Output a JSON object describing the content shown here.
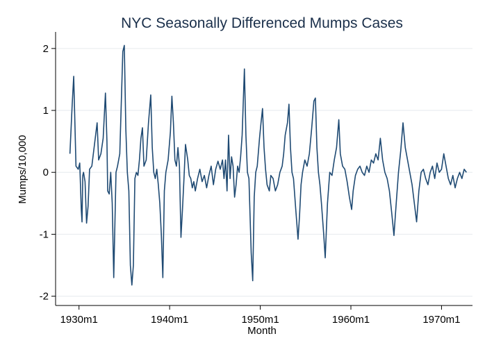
{
  "chart_data": {
    "type": "line",
    "title": "NYC Seasonally Differenced Mumps Cases",
    "xlabel": "Month",
    "ylabel": "Mumps/10,000",
    "xlim": [
      "1927m6",
      "1973m6"
    ],
    "ylim": [
      -2.15,
      2.2
    ],
    "x_ticks": [
      "1930m1",
      "1940m1",
      "1950m1",
      "1960m1",
      "1970m1"
    ],
    "y_ticks": [
      -2,
      -1,
      0,
      1,
      2
    ],
    "y_tick_labels": [
      "-2",
      "-1",
      "0",
      "1",
      "2"
    ],
    "grid": "horizontal",
    "legend": "none",
    "colors": {
      "line": "#1f4a73",
      "grid": "#e6eaee",
      "axis": "#000000"
    },
    "series": [
      {
        "color": "#1f4a73",
        "points": [
          [
            "1929m1",
            0.3
          ],
          [
            "1929m4",
            1.1
          ],
          [
            "1929m6",
            1.55
          ],
          [
            "1929m9",
            0.1
          ],
          [
            "1929m12",
            0.05
          ],
          [
            "1930m2",
            0.15
          ],
          [
            "1930m4",
            -0.6
          ],
          [
            "1930m5",
            -0.8
          ],
          [
            "1930m6",
            -0.05
          ],
          [
            "1930m7",
            0.0
          ],
          [
            "1930m9",
            -0.15
          ],
          [
            "1930m11",
            -0.82
          ],
          [
            "1931m1",
            -0.55
          ],
          [
            "1931m3",
            0.05
          ],
          [
            "1931m6",
            0.1
          ],
          [
            "1931m9",
            0.4
          ],
          [
            "1931m11",
            0.6
          ],
          [
            "1932m1",
            0.8
          ],
          [
            "1932m3",
            0.2
          ],
          [
            "1932m6",
            0.3
          ],
          [
            "1932m9",
            0.55
          ],
          [
            "1932m12",
            1.28
          ],
          [
            "1933m2",
            0.5
          ],
          [
            "1933m3",
            -0.3
          ],
          [
            "1933m5",
            -0.35
          ],
          [
            "1933m7",
            0.0
          ],
          [
            "1933m9",
            -0.5
          ],
          [
            "1933m11",
            -1.7
          ],
          [
            "1934m2",
            0.0
          ],
          [
            "1934m4",
            0.1
          ],
          [
            "1934m7",
            0.3
          ],
          [
            "1934m11",
            1.95
          ],
          [
            "1935m1",
            2.05
          ],
          [
            "1935m3",
            0.7
          ],
          [
            "1935m5",
            0.0
          ],
          [
            "1935m7",
            -0.3
          ],
          [
            "1935m9",
            -1.5
          ],
          [
            "1935m11",
            -1.82
          ],
          [
            "1936m1",
            -1.5
          ],
          [
            "1936m3",
            -0.1
          ],
          [
            "1936m5",
            0.0
          ],
          [
            "1936m7",
            -0.05
          ],
          [
            "1936m9",
            0.2
          ],
          [
            "1936m11",
            0.55
          ],
          [
            "1937m1",
            0.72
          ],
          [
            "1937m3",
            0.1
          ],
          [
            "1937m6",
            0.2
          ],
          [
            "1937m9",
            0.8
          ],
          [
            "1937m12",
            1.25
          ],
          [
            "1938m2",
            0.4
          ],
          [
            "1938m4",
            0.0
          ],
          [
            "1938m6",
            -0.1
          ],
          [
            "1938m8",
            0.05
          ],
          [
            "1938m10",
            -0.2
          ],
          [
            "1938m12",
            -0.5
          ],
          [
            "1939m2",
            -1.0
          ],
          [
            "1939m4",
            -1.7
          ],
          [
            "1939m6",
            -0.3
          ],
          [
            "1939m8",
            0.0
          ],
          [
            "1939m11",
            0.2
          ],
          [
            "1940m2",
            0.65
          ],
          [
            "1940m4",
            1.23
          ],
          [
            "1940m6",
            0.8
          ],
          [
            "1940m8",
            0.2
          ],
          [
            "1940m10",
            0.1
          ],
          [
            "1940m12",
            0.4
          ],
          [
            "1941m2",
            0.1
          ],
          [
            "1941m4",
            -1.05
          ],
          [
            "1941m6",
            -0.6
          ],
          [
            "1941m8",
            -0.1
          ],
          [
            "1941m10",
            0.45
          ],
          [
            "1942m1",
            0.2
          ],
          [
            "1942m3",
            -0.05
          ],
          [
            "1942m5",
            -0.1
          ],
          [
            "1942m7",
            -0.25
          ],
          [
            "1942m9",
            -0.15
          ],
          [
            "1942m11",
            -0.3
          ],
          [
            "1943m2",
            -0.1
          ],
          [
            "1943m5",
            0.05
          ],
          [
            "1943m8",
            -0.15
          ],
          [
            "1943m11",
            -0.05
          ],
          [
            "1944m2",
            -0.25
          ],
          [
            "1944m5",
            -0.05
          ],
          [
            "1944m8",
            0.1
          ],
          [
            "1944m11",
            -0.2
          ],
          [
            "1945m2",
            0.05
          ],
          [
            "1945m5",
            0.18
          ],
          [
            "1945m8",
            0.05
          ],
          [
            "1945m11",
            0.2
          ],
          [
            "1946m1",
            -0.1
          ],
          [
            "1946m3",
            0.2
          ],
          [
            "1946m5",
            -0.3
          ],
          [
            "1946m7",
            0.6
          ],
          [
            "1946m9",
            -0.1
          ],
          [
            "1946m11",
            0.25
          ],
          [
            "1947m1",
            0.1
          ],
          [
            "1947m3",
            -0.4
          ],
          [
            "1947m5",
            -0.2
          ],
          [
            "1947m7",
            0.1
          ],
          [
            "1947m9",
            0.0
          ],
          [
            "1947m11",
            0.25
          ],
          [
            "1948m1",
            0.6
          ],
          [
            "1948m4",
            1.67
          ],
          [
            "1948m6",
            0.6
          ],
          [
            "1948m8",
            0.0
          ],
          [
            "1948m10",
            -0.1
          ],
          [
            "1949m1",
            -1.3
          ],
          [
            "1949m3",
            -1.75
          ],
          [
            "1949m5",
            -0.4
          ],
          [
            "1949m7",
            0.0
          ],
          [
            "1949m9",
            0.1
          ],
          [
            "1949m12",
            0.55
          ],
          [
            "1950m2",
            0.8
          ],
          [
            "1950m4",
            1.03
          ],
          [
            "1950m6",
            0.4
          ],
          [
            "1950m8",
            0.05
          ],
          [
            "1950m10",
            -0.2
          ],
          [
            "1951m1",
            -0.3
          ],
          [
            "1951m3",
            -0.05
          ],
          [
            "1951m6",
            -0.1
          ],
          [
            "1951m9",
            -0.3
          ],
          [
            "1951m12",
            -0.2
          ],
          [
            "1952m3",
            0.0
          ],
          [
            "1952m6",
            0.1
          ],
          [
            "1952m8",
            0.3
          ],
          [
            "1952m10",
            0.6
          ],
          [
            "1953m1",
            0.8
          ],
          [
            "1953m3",
            1.1
          ],
          [
            "1953m5",
            0.4
          ],
          [
            "1953m7",
            0.0
          ],
          [
            "1953m9",
            -0.1
          ],
          [
            "1953m12",
            -0.6
          ],
          [
            "1954m3",
            -1.08
          ],
          [
            "1954m5",
            -0.7
          ],
          [
            "1954m7",
            -0.2
          ],
          [
            "1954m9",
            0.0
          ],
          [
            "1954m12",
            0.2
          ],
          [
            "1955m3",
            0.1
          ],
          [
            "1955m6",
            0.3
          ],
          [
            "1955m9",
            0.7
          ],
          [
            "1955m12",
            1.15
          ],
          [
            "1956m2",
            1.2
          ],
          [
            "1956m4",
            0.4
          ],
          [
            "1956m6",
            0.0
          ],
          [
            "1956m8",
            -0.2
          ],
          [
            "1956m10",
            -0.5
          ],
          [
            "1957m1",
            -1.0
          ],
          [
            "1957m3",
            -1.38
          ],
          [
            "1957m6",
            -0.5
          ],
          [
            "1957m9",
            0.0
          ],
          [
            "1957m12",
            -0.05
          ],
          [
            "1958m3",
            0.2
          ],
          [
            "1958m6",
            0.4
          ],
          [
            "1958m9",
            0.85
          ],
          [
            "1958m11",
            0.3
          ],
          [
            "1959m2",
            0.1
          ],
          [
            "1959m5",
            0.05
          ],
          [
            "1959m8",
            -0.15
          ],
          [
            "1959m11",
            -0.4
          ],
          [
            "1960m2",
            -0.6
          ],
          [
            "1960m4",
            -0.3
          ],
          [
            "1960m7",
            -0.05
          ],
          [
            "1960m10",
            0.05
          ],
          [
            "1961m1",
            0.1
          ],
          [
            "1961m4",
            0.0
          ],
          [
            "1961m7",
            -0.05
          ],
          [
            "1961m10",
            0.1
          ],
          [
            "1962m1",
            0.0
          ],
          [
            "1962m4",
            0.2
          ],
          [
            "1962m7",
            0.15
          ],
          [
            "1962m10",
            0.3
          ],
          [
            "1963m1",
            0.2
          ],
          [
            "1963m4",
            0.55
          ],
          [
            "1963m7",
            0.2
          ],
          [
            "1963m10",
            0.0
          ],
          [
            "1964m1",
            -0.1
          ],
          [
            "1964m4",
            -0.3
          ],
          [
            "1964m7",
            -0.65
          ],
          [
            "1964m10",
            -1.02
          ],
          [
            "1965m1",
            -0.5
          ],
          [
            "1965m4",
            0.0
          ],
          [
            "1965m7",
            0.35
          ],
          [
            "1965m10",
            0.8
          ],
          [
            "1966m1",
            0.4
          ],
          [
            "1966m4",
            0.2
          ],
          [
            "1966m7",
            0.0
          ],
          [
            "1966m10",
            -0.2
          ],
          [
            "1967m1",
            -0.5
          ],
          [
            "1967m4",
            -0.8
          ],
          [
            "1967m7",
            -0.3
          ],
          [
            "1967m10",
            0.0
          ],
          [
            "1968m1",
            0.05
          ],
          [
            "1968m4",
            -0.1
          ],
          [
            "1968m7",
            -0.2
          ],
          [
            "1968m10",
            0.0
          ],
          [
            "1969m1",
            0.1
          ],
          [
            "1969m4",
            -0.1
          ],
          [
            "1969m7",
            0.15
          ],
          [
            "1969m10",
            0.0
          ],
          [
            "1970m1",
            0.05
          ],
          [
            "1970m4",
            0.3
          ],
          [
            "1970m7",
            0.1
          ],
          [
            "1970m10",
            -0.1
          ],
          [
            "1971m1",
            -0.2
          ],
          [
            "1971m4",
            -0.05
          ],
          [
            "1971m7",
            -0.25
          ],
          [
            "1971m10",
            -0.1
          ],
          [
            "1972m1",
            0.0
          ],
          [
            "1972m4",
            -0.1
          ],
          [
            "1972m7",
            0.05
          ],
          [
            "1972m10",
            0.0
          ]
        ]
      }
    ]
  }
}
